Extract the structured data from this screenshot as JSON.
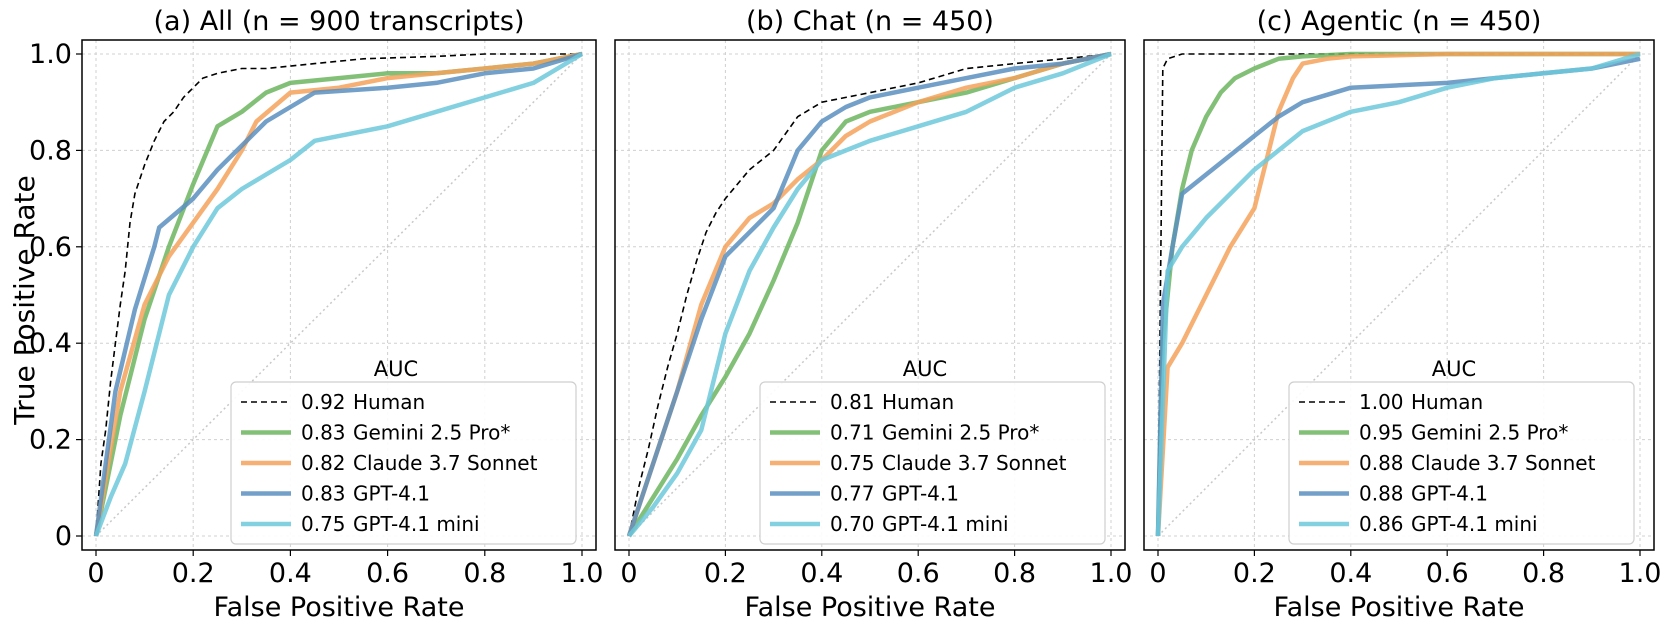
{
  "figure": {
    "ylabel": "True Positive Rate",
    "legend_title": "AUC"
  },
  "series_styles": {
    "Human": {
      "color": "#000000",
      "dashed": true
    },
    "Gemini 2.5 Pro*": {
      "color": "#6db55f",
      "dashed": false
    },
    "Claude 3.7 Sonnet": {
      "color": "#f4a25b",
      "dashed": false
    },
    "GPT-4.1": {
      "color": "#5b8fbe",
      "dashed": false
    },
    "GPT-4.1 mini": {
      "color": "#6cc8da",
      "dashed": false
    }
  },
  "chart_data": [
    {
      "type": "line",
      "title": "(a) All (n = 900 transcripts)",
      "xlabel": "False Positive Rate",
      "ylabel": "True Positive Rate",
      "xlim": [
        0,
        1
      ],
      "ylim": [
        0,
        1
      ],
      "xticks": [
        "0",
        "0.2",
        "0.4",
        "0.6",
        "0.8",
        "1.0"
      ],
      "yticks": [
        "0",
        "0.2",
        "0.4",
        "0.6",
        "0.8",
        "1.0"
      ],
      "grid": true,
      "legend_position": "lower-right",
      "series": [
        {
          "name": "Human",
          "auc": "0.92",
          "x": [
            0,
            0.01,
            0.02,
            0.03,
            0.04,
            0.05,
            0.06,
            0.07,
            0.08,
            0.1,
            0.12,
            0.14,
            0.16,
            0.18,
            0.2,
            0.22,
            0.25,
            0.3,
            0.35,
            0.45,
            0.55,
            0.7,
            0.8,
            1.0
          ],
          "y": [
            0,
            0.15,
            0.22,
            0.32,
            0.4,
            0.48,
            0.55,
            0.65,
            0.71,
            0.77,
            0.82,
            0.86,
            0.88,
            0.91,
            0.93,
            0.95,
            0.96,
            0.97,
            0.97,
            0.98,
            0.99,
            0.995,
            1.0,
            1.0
          ]
        },
        {
          "name": "Gemini 2.5 Pro*",
          "auc": "0.83",
          "x": [
            0,
            0.05,
            0.1,
            0.15,
            0.2,
            0.25,
            0.3,
            0.35,
            0.4,
            0.5,
            0.6,
            0.7,
            0.8,
            0.9,
            1.0
          ],
          "y": [
            0,
            0.25,
            0.45,
            0.6,
            0.73,
            0.85,
            0.88,
            0.92,
            0.94,
            0.95,
            0.96,
            0.96,
            0.97,
            0.98,
            1.0
          ]
        },
        {
          "name": "Claude 3.7 Sonnet",
          "auc": "0.82",
          "x": [
            0,
            0.05,
            0.1,
            0.15,
            0.2,
            0.25,
            0.3,
            0.33,
            0.4,
            0.5,
            0.6,
            0.7,
            0.8,
            0.9,
            1.0
          ],
          "y": [
            0,
            0.3,
            0.48,
            0.58,
            0.65,
            0.72,
            0.8,
            0.86,
            0.92,
            0.93,
            0.95,
            0.96,
            0.97,
            0.98,
            1.0
          ]
        },
        {
          "name": "GPT-4.1",
          "auc": "0.83",
          "x": [
            0,
            0.04,
            0.08,
            0.12,
            0.13,
            0.2,
            0.25,
            0.3,
            0.35,
            0.4,
            0.45,
            0.6,
            0.7,
            0.8,
            0.9,
            1.0
          ],
          "y": [
            0,
            0.3,
            0.47,
            0.6,
            0.64,
            0.7,
            0.76,
            0.81,
            0.86,
            0.89,
            0.92,
            0.93,
            0.94,
            0.96,
            0.97,
            1.0
          ]
        },
        {
          "name": "GPT-4.1 mini",
          "auc": "0.75",
          "x": [
            0,
            0.03,
            0.06,
            0.1,
            0.15,
            0.2,
            0.25,
            0.3,
            0.35,
            0.4,
            0.45,
            0.6,
            0.7,
            0.8,
            0.9,
            1.0
          ],
          "y": [
            0,
            0.08,
            0.15,
            0.3,
            0.5,
            0.6,
            0.68,
            0.72,
            0.75,
            0.78,
            0.82,
            0.85,
            0.88,
            0.91,
            0.94,
            1.0
          ]
        }
      ]
    },
    {
      "type": "line",
      "title": "(b) Chat (n = 450)",
      "xlabel": "False Positive Rate",
      "ylabel": "",
      "xlim": [
        0,
        1
      ],
      "ylim": [
        0,
        1
      ],
      "xticks": [
        "0",
        "0.2",
        "0.4",
        "0.6",
        "0.8",
        "1.0"
      ],
      "yticks": [],
      "grid": true,
      "legend_position": "lower-right",
      "series": [
        {
          "name": "Human",
          "auc": "0.81",
          "x": [
            0,
            0.02,
            0.04,
            0.06,
            0.08,
            0.1,
            0.12,
            0.14,
            0.16,
            0.18,
            0.2,
            0.25,
            0.3,
            0.35,
            0.4,
            0.45,
            0.5,
            0.6,
            0.7,
            0.8,
            0.9,
            1.0
          ],
          "y": [
            0,
            0.1,
            0.18,
            0.27,
            0.35,
            0.42,
            0.5,
            0.57,
            0.63,
            0.67,
            0.7,
            0.76,
            0.8,
            0.87,
            0.9,
            0.91,
            0.92,
            0.94,
            0.97,
            0.98,
            0.99,
            1.0
          ]
        },
        {
          "name": "Gemini 2.5 Pro*",
          "auc": "0.71",
          "x": [
            0,
            0.05,
            0.1,
            0.15,
            0.2,
            0.25,
            0.3,
            0.35,
            0.4,
            0.45,
            0.5,
            0.6,
            0.7,
            0.8,
            0.9,
            1.0
          ],
          "y": [
            0,
            0.08,
            0.16,
            0.25,
            0.33,
            0.42,
            0.53,
            0.65,
            0.8,
            0.86,
            0.88,
            0.9,
            0.92,
            0.95,
            0.98,
            1.0
          ]
        },
        {
          "name": "Claude 3.7 Sonnet",
          "auc": "0.75",
          "x": [
            0,
            0.05,
            0.1,
            0.15,
            0.2,
            0.25,
            0.3,
            0.35,
            0.4,
            0.45,
            0.5,
            0.6,
            0.7,
            0.8,
            0.9,
            1.0
          ],
          "y": [
            0,
            0.15,
            0.3,
            0.48,
            0.6,
            0.66,
            0.69,
            0.74,
            0.78,
            0.83,
            0.86,
            0.9,
            0.93,
            0.95,
            0.98,
            1.0
          ]
        },
        {
          "name": "GPT-4.1",
          "auc": "0.77",
          "x": [
            0,
            0.05,
            0.1,
            0.15,
            0.2,
            0.25,
            0.3,
            0.35,
            0.4,
            0.45,
            0.5,
            0.6,
            0.7,
            0.8,
            0.9,
            1.0
          ],
          "y": [
            0,
            0.15,
            0.3,
            0.45,
            0.58,
            0.63,
            0.68,
            0.8,
            0.86,
            0.89,
            0.91,
            0.93,
            0.95,
            0.97,
            0.98,
            1.0
          ]
        },
        {
          "name": "GPT-4.1 mini",
          "auc": "0.70",
          "x": [
            0,
            0.05,
            0.1,
            0.15,
            0.2,
            0.25,
            0.3,
            0.35,
            0.4,
            0.45,
            0.5,
            0.6,
            0.7,
            0.8,
            0.9,
            1.0
          ],
          "y": [
            0,
            0.06,
            0.13,
            0.22,
            0.42,
            0.55,
            0.64,
            0.72,
            0.78,
            0.8,
            0.82,
            0.85,
            0.88,
            0.93,
            0.96,
            1.0
          ]
        }
      ]
    },
    {
      "type": "line",
      "title": "(c) Agentic (n = 450)",
      "xlabel": "False Positive Rate",
      "ylabel": "",
      "xlim": [
        0,
        1
      ],
      "ylim": [
        0,
        1
      ],
      "xticks": [
        "0",
        "0.2",
        "0.4",
        "0.6",
        "0.8",
        "1.0"
      ],
      "yticks": [],
      "grid": true,
      "legend_position": "lower-right",
      "series": [
        {
          "name": "Human",
          "auc": "1.00",
          "x": [
            0,
            0.005,
            0.01,
            0.02,
            0.05,
            1.0
          ],
          "y": [
            0,
            0.5,
            0.97,
            0.99,
            1.0,
            1.0
          ]
        },
        {
          "name": "Gemini 2.5 Pro*",
          "auc": "0.95",
          "x": [
            0,
            0.01,
            0.03,
            0.05,
            0.07,
            0.1,
            0.13,
            0.16,
            0.2,
            0.25,
            0.3,
            0.4,
            1.0
          ],
          "y": [
            0,
            0.4,
            0.6,
            0.72,
            0.8,
            0.87,
            0.92,
            0.95,
            0.97,
            0.99,
            0.995,
            1.0,
            1.0
          ]
        },
        {
          "name": "Claude 3.7 Sonnet",
          "auc": "0.88",
          "x": [
            0,
            0.02,
            0.05,
            0.1,
            0.15,
            0.2,
            0.23,
            0.25,
            0.28,
            0.3,
            0.35,
            0.4,
            0.6,
            1.0
          ],
          "y": [
            0,
            0.35,
            0.4,
            0.5,
            0.6,
            0.68,
            0.8,
            0.88,
            0.95,
            0.98,
            0.99,
            0.995,
            1.0,
            1.0
          ]
        },
        {
          "name": "GPT-4.1",
          "auc": "0.88",
          "x": [
            0,
            0.01,
            0.03,
            0.05,
            0.1,
            0.15,
            0.2,
            0.25,
            0.3,
            0.4,
            0.6,
            0.8,
            0.9,
            1.0
          ],
          "y": [
            0,
            0.48,
            0.6,
            0.71,
            0.75,
            0.79,
            0.83,
            0.87,
            0.9,
            0.93,
            0.94,
            0.96,
            0.97,
            0.99
          ]
        },
        {
          "name": "GPT-4.1 mini",
          "auc": "0.86",
          "x": [
            0,
            0.02,
            0.05,
            0.1,
            0.15,
            0.2,
            0.3,
            0.4,
            0.5,
            0.6,
            0.7,
            0.8,
            0.9,
            1.0
          ],
          "y": [
            0,
            0.55,
            0.6,
            0.66,
            0.71,
            0.76,
            0.84,
            0.88,
            0.9,
            0.93,
            0.95,
            0.96,
            0.97,
            1.0
          ]
        }
      ]
    }
  ]
}
